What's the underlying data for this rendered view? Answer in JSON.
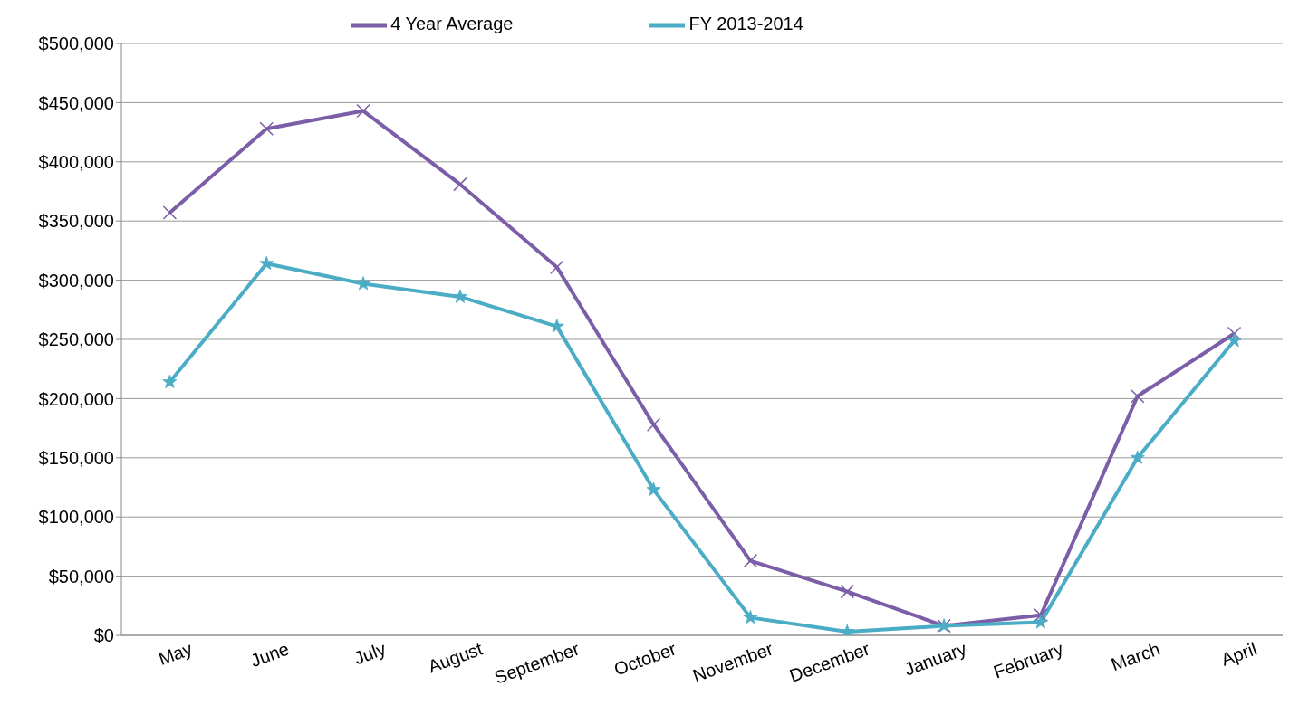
{
  "chart_data": {
    "type": "line",
    "categories": [
      "May",
      "June",
      "July",
      "August",
      "September",
      "October",
      "November",
      "December",
      "January",
      "February",
      "March",
      "April"
    ],
    "series": [
      {
        "name": "4 Year Average",
        "color": "#7b5ea7",
        "marker": "cross",
        "values": [
          357000,
          428000,
          443000,
          381000,
          311000,
          178000,
          63000,
          37000,
          8000,
          17000,
          202000,
          255000
        ]
      },
      {
        "name": "FY 2013-2014",
        "color": "#4bacc6",
        "marker": "star",
        "values": [
          214000,
          314000,
          297000,
          286000,
          261000,
          123000,
          15000,
          3000,
          8000,
          11000,
          150000,
          249000
        ]
      }
    ],
    "ylim": [
      0,
      500000
    ],
    "yticks": [
      {
        "value": 0,
        "label": "$0"
      },
      {
        "value": 50000,
        "label": "$50,000"
      },
      {
        "value": 100000,
        "label": "$100,000"
      },
      {
        "value": 150000,
        "label": "$150,000"
      },
      {
        "value": 200000,
        "label": "$200,000"
      },
      {
        "value": 250000,
        "label": "$250,000"
      },
      {
        "value": 300000,
        "label": "$300,000"
      },
      {
        "value": 350000,
        "label": "$350,000"
      },
      {
        "value": 400000,
        "label": "$400,000"
      },
      {
        "value": 450000,
        "label": "$450,000"
      },
      {
        "value": 500000,
        "label": "$500,000"
      }
    ],
    "grid": "y",
    "legend": "top",
    "line_style": "solid"
  }
}
